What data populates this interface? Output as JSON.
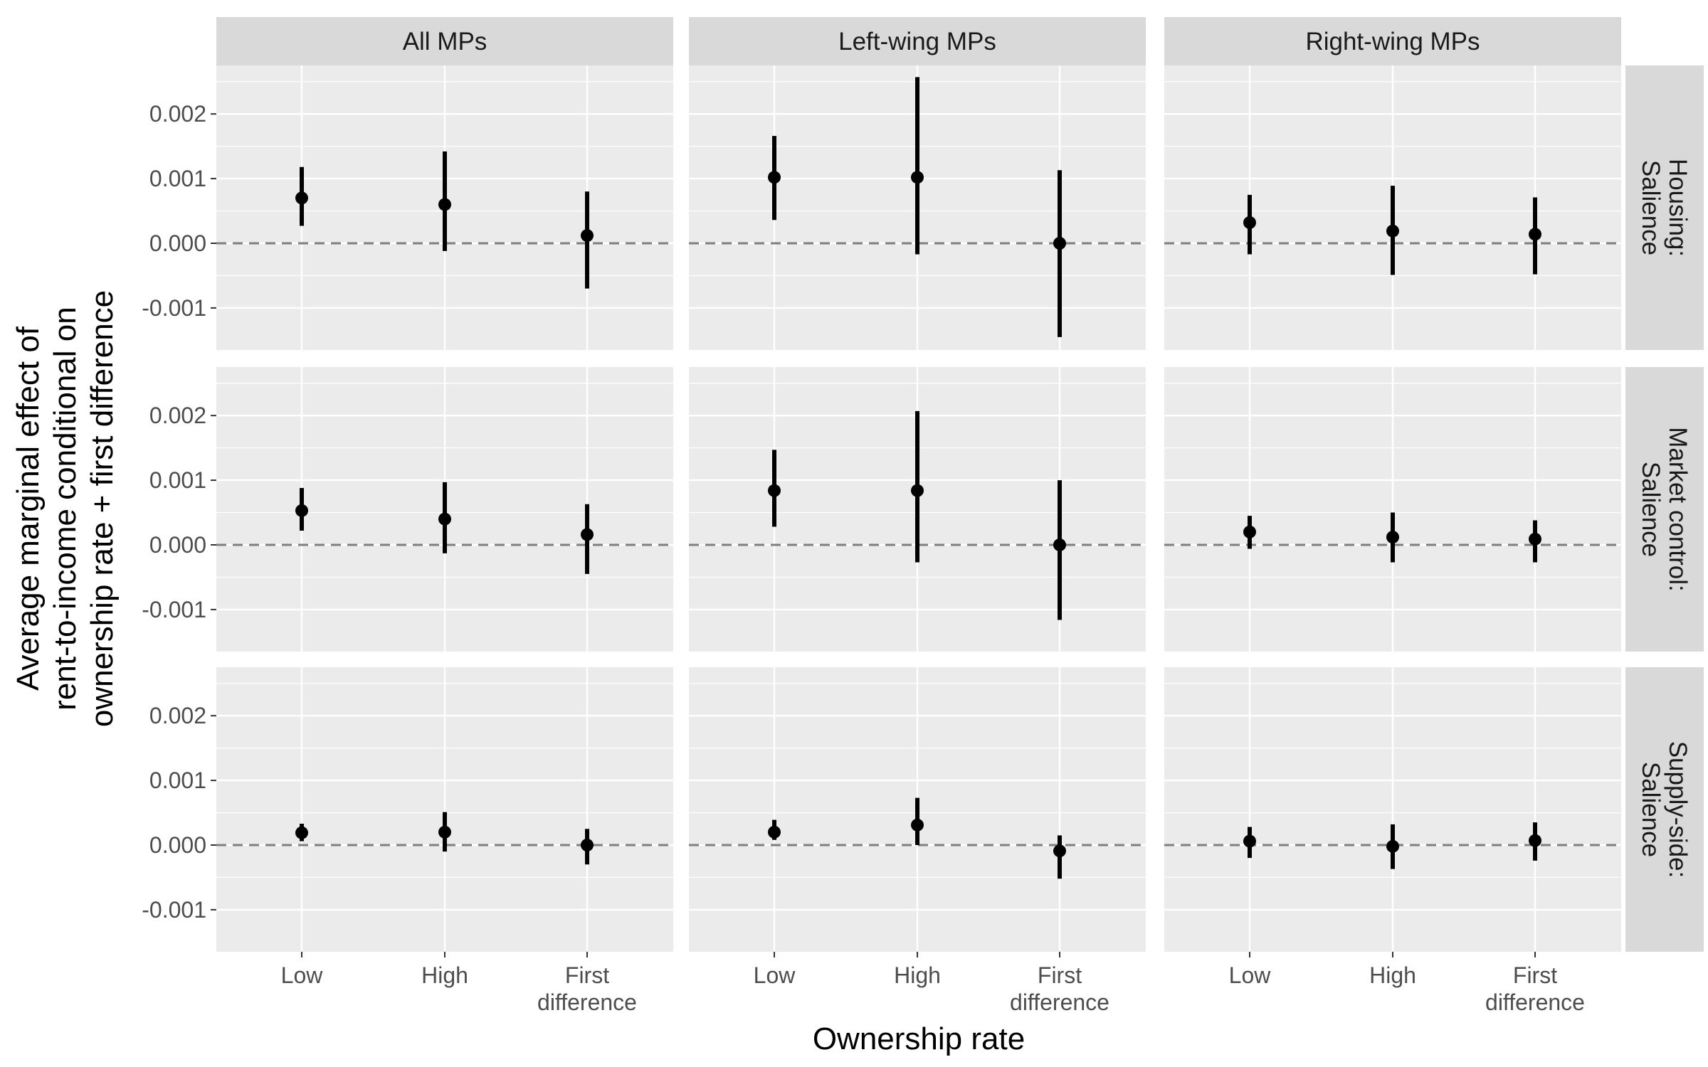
{
  "chart_data": {
    "type": "pointrange",
    "xlabel": "Ownership rate",
    "ylabel": "Average marginal effect of rent-to-income conditional on ownership rate + first difference",
    "ylabel_lines": [
      "Average marginal effect of",
      "rent-to-income conditional on",
      "ownership rate + first difference"
    ],
    "columns": [
      "All MPs",
      "Left-wing MPs",
      "Right-wing MPs"
    ],
    "rows": [
      {
        "lines": [
          "Housing:",
          "Salience"
        ]
      },
      {
        "lines": [
          "Market control:",
          "Salience"
        ]
      },
      {
        "lines": [
          "Supply-side:",
          "Salience"
        ]
      }
    ],
    "categories": [
      {
        "lines": [
          "Low"
        ]
      },
      {
        "lines": [
          "High"
        ]
      },
      {
        "lines": [
          "First",
          "difference"
        ]
      }
    ],
    "ylim": [
      -0.00165,
      0.00275
    ],
    "yticks": [
      -0.001,
      0.0,
      0.001,
      0.002
    ],
    "ytick_labels": [
      "-0.001",
      "0.000",
      "0.001",
      "0.002"
    ],
    "reference_line": 0,
    "panels": [
      {
        "row": 0,
        "col": 0,
        "points": [
          {
            "estimate": 0.0007,
            "lower": 0.00027,
            "upper": 0.00118
          },
          {
            "estimate": 0.0006,
            "lower": -0.00012,
            "upper": 0.00142
          },
          {
            "estimate": 0.00012,
            "lower": -0.0007,
            "upper": 0.0008
          }
        ]
      },
      {
        "row": 0,
        "col": 1,
        "points": [
          {
            "estimate": 0.00102,
            "lower": 0.00036,
            "upper": 0.00166
          },
          {
            "estimate": 0.00102,
            "lower": -0.00017,
            "upper": 0.00257
          },
          {
            "estimate": 0.0,
            "lower": -0.00145,
            "upper": 0.00113
          }
        ]
      },
      {
        "row": 0,
        "col": 2,
        "points": [
          {
            "estimate": 0.00032,
            "lower": -0.00017,
            "upper": 0.00075
          },
          {
            "estimate": 0.00019,
            "lower": -0.00049,
            "upper": 0.00089
          },
          {
            "estimate": 0.00014,
            "lower": -0.00048,
            "upper": 0.00071
          }
        ]
      },
      {
        "row": 1,
        "col": 0,
        "points": [
          {
            "estimate": 0.00053,
            "lower": 0.00022,
            "upper": 0.00088
          },
          {
            "estimate": 0.0004,
            "lower": -0.00013,
            "upper": 0.00097
          },
          {
            "estimate": 0.00016,
            "lower": -0.00045,
            "upper": 0.00063
          }
        ]
      },
      {
        "row": 1,
        "col": 1,
        "points": [
          {
            "estimate": 0.00084,
            "lower": 0.00028,
            "upper": 0.00147
          },
          {
            "estimate": 0.00084,
            "lower": -0.00027,
            "upper": 0.00207
          },
          {
            "estimate": 0.0,
            "lower": -0.00116,
            "upper": 0.001
          }
        ]
      },
      {
        "row": 1,
        "col": 2,
        "points": [
          {
            "estimate": 0.0002,
            "lower": -6e-05,
            "upper": 0.00045
          },
          {
            "estimate": 0.00012,
            "lower": -0.00027,
            "upper": 0.0005
          },
          {
            "estimate": 9e-05,
            "lower": -0.00027,
            "upper": 0.00038
          }
        ]
      },
      {
        "row": 2,
        "col": 0,
        "points": [
          {
            "estimate": 0.00019,
            "lower": 6e-05,
            "upper": 0.00033
          },
          {
            "estimate": 0.0002,
            "lower": -0.0001,
            "upper": 0.00051
          },
          {
            "estimate": 0.0,
            "lower": -0.0003,
            "upper": 0.00025
          }
        ]
      },
      {
        "row": 2,
        "col": 1,
        "points": [
          {
            "estimate": 0.0002,
            "lower": 8e-05,
            "upper": 0.00039
          },
          {
            "estimate": 0.00031,
            "lower": 0.0,
            "upper": 0.00073
          },
          {
            "estimate": -9e-05,
            "lower": -0.00052,
            "upper": 0.00015
          }
        ]
      },
      {
        "row": 2,
        "col": 2,
        "points": [
          {
            "estimate": 6e-05,
            "lower": -0.0002,
            "upper": 0.00028
          },
          {
            "estimate": -2e-05,
            "lower": -0.00037,
            "upper": 0.00032
          },
          {
            "estimate": 7e-05,
            "lower": -0.00024,
            "upper": 0.00035
          }
        ]
      }
    ],
    "colors": {
      "panel_background": "#ebebeb",
      "grid": "#ffffff",
      "strip": "#d9d9d9",
      "point": "#000000",
      "reference": "#7f7f7f",
      "tick_text": "#4d4d4d"
    },
    "grid": true
  }
}
